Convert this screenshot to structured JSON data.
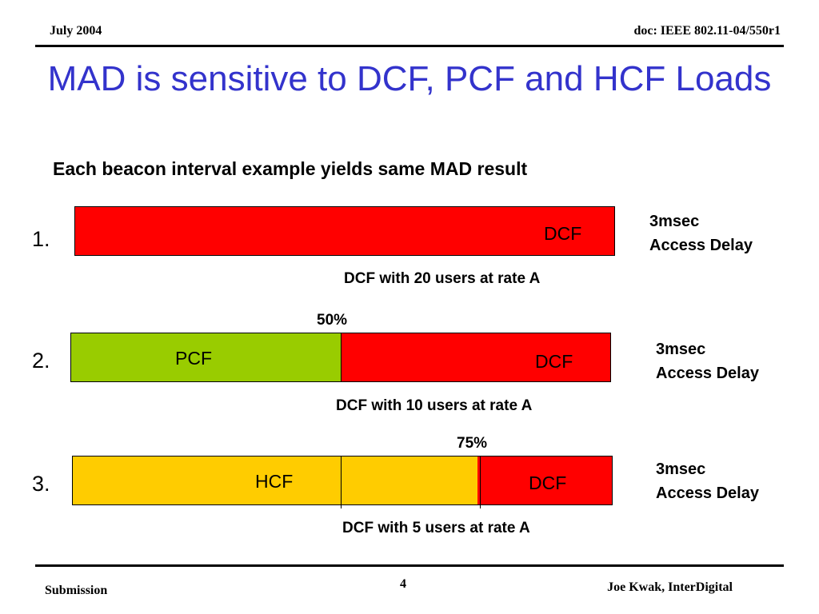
{
  "header": {
    "date": "July 2004",
    "doc": "doc: IEEE 802.11-04/550r1"
  },
  "title": "MAD is sensitive to DCF, PCF and HCF Loads",
  "subtitle": "Each beacon interval example yields same MAD result",
  "colors": {
    "dcf": "#ff0000",
    "pcf": "#99cc00",
    "hcf": "#ffcc00",
    "title": "#3333cc"
  },
  "examples": [
    {
      "number": "1.",
      "segments": [
        {
          "label": "DCF",
          "fraction": 1.0
        }
      ],
      "caption": "DCF with 20 users at rate A",
      "delay_line1": "3msec",
      "delay_line2": "Access Delay"
    },
    {
      "number": "2.",
      "split_label": "50%",
      "segments": [
        {
          "label": "PCF",
          "fraction": 0.5
        },
        {
          "label": "DCF",
          "fraction": 0.5
        }
      ],
      "caption": "DCF with 10 users at rate A",
      "delay_line1": "3msec",
      "delay_line2": "Access Delay"
    },
    {
      "number": "3.",
      "split_label": "75%",
      "segments": [
        {
          "label": "HCF",
          "fraction": 0.75
        },
        {
          "label": "DCF",
          "fraction": 0.25
        }
      ],
      "caption": "DCF with 5 users at rate A",
      "delay_line1": "3msec",
      "delay_line2": "Access Delay"
    }
  ],
  "footer": {
    "left": "Submission",
    "page": "4",
    "right": "Joe Kwak, InterDigital"
  }
}
